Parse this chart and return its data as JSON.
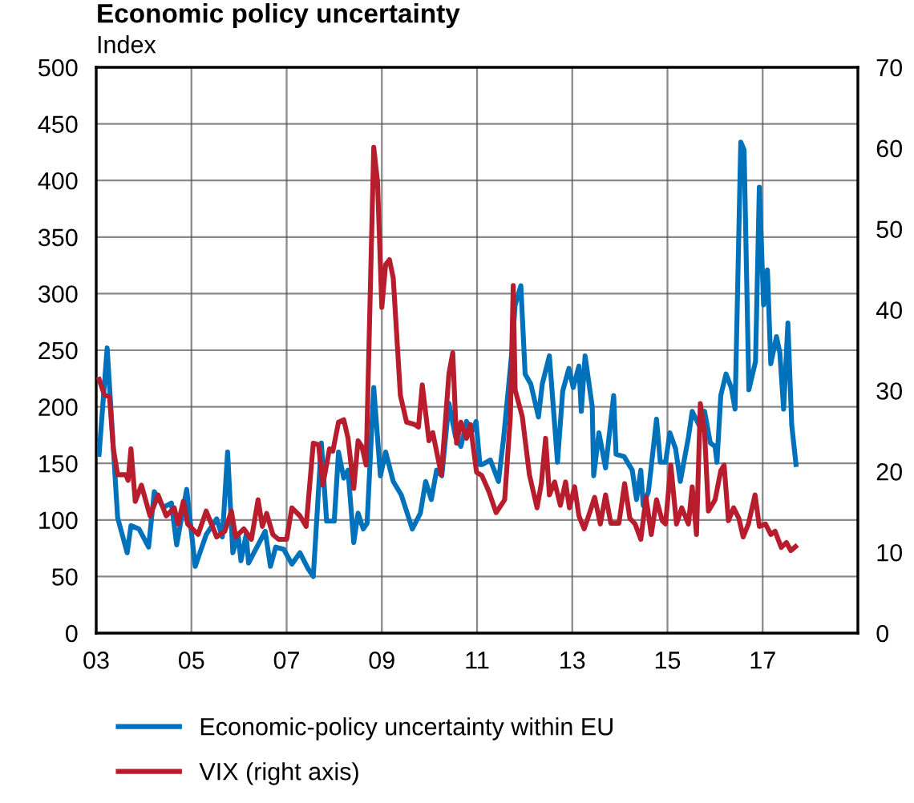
{
  "chart_data": {
    "type": "line",
    "title": "Economic policy uncertainty",
    "ylabel": "Index",
    "xlim": [
      2003,
      2019
    ],
    "xticks": [
      {
        "value": 2003,
        "label": "03"
      },
      {
        "value": 2005,
        "label": "05"
      },
      {
        "value": 2007,
        "label": "07"
      },
      {
        "value": 2009,
        "label": "09"
      },
      {
        "value": 2011,
        "label": "11"
      },
      {
        "value": 2013,
        "label": "13"
      },
      {
        "value": 2015,
        "label": "15"
      },
      {
        "value": 2017,
        "label": "17"
      }
    ],
    "ylim": [
      0,
      500
    ],
    "yticks": [
      0,
      50,
      100,
      150,
      200,
      250,
      300,
      350,
      400,
      450,
      500
    ],
    "y2lim": [
      0,
      70
    ],
    "y2ticks": [
      0,
      10,
      20,
      30,
      40,
      50,
      60,
      70
    ],
    "grid": true,
    "legend": "bottom",
    "line_style": "solid",
    "series": [
      {
        "name": "Economic-policy uncertainty within EU",
        "color": "#0072bc",
        "x": [
          2003.06,
          2003.23,
          2003.45,
          2003.65,
          2003.73,
          2003.9,
          2004.1,
          2004.22,
          2004.41,
          2004.58,
          2004.69,
          2004.9,
          2005.08,
          2005.31,
          2005.53,
          2005.65,
          2005.76,
          2005.87,
          2005.98,
          2006.04,
          2006.15,
          2006.2,
          2006.55,
          2006.66,
          2006.77,
          2006.94,
          2007.11,
          2007.28,
          2007.45,
          2007.56,
          2007.73,
          2007.84,
          2008.0,
          2008.09,
          2008.2,
          2008.29,
          2008.41,
          2008.5,
          2008.61,
          2008.69,
          2008.83,
          2008.97,
          2009.08,
          2009.24,
          2009.41,
          2009.64,
          2009.81,
          2009.92,
          2010.04,
          2010.15,
          2010.26,
          2010.41,
          2010.55,
          2010.66,
          2010.78,
          2010.89,
          2010.98,
          2011.06,
          2011.11,
          2011.28,
          2011.45,
          2011.56,
          2011.73,
          2011.8,
          2011.92,
          2012.01,
          2012.13,
          2012.29,
          2012.37,
          2012.52,
          2012.69,
          2012.8,
          2012.93,
          2013.02,
          2013.14,
          2013.19,
          2013.27,
          2013.42,
          2013.45,
          2013.56,
          2013.7,
          2013.87,
          2013.92,
          2014.09,
          2014.26,
          2014.35,
          2014.44,
          2014.49,
          2014.6,
          2014.77,
          2014.85,
          2014.96,
          2015.05,
          2015.17,
          2015.27,
          2015.44,
          2015.52,
          2015.66,
          2015.78,
          2015.9,
          2016.0,
          2016.04,
          2016.12,
          2016.23,
          2016.34,
          2016.42,
          2016.54,
          2016.61,
          2016.71,
          2016.85,
          2016.93,
          2017.02,
          2017.1,
          2017.17,
          2017.29,
          2017.36,
          2017.44,
          2017.53,
          2017.61,
          2017.7
        ],
        "values": [
          158,
          252,
          102,
          71,
          95,
          92,
          76,
          125,
          111,
          115,
          78,
          127,
          59,
          87,
          101,
          85,
          160,
          71,
          87,
          64,
          87,
          62,
          90,
          59,
          76,
          74,
          61,
          71,
          57,
          50,
          168,
          99,
          99,
          160,
          137,
          144,
          80,
          106,
          92,
          97,
          217,
          139,
          160,
          134,
          122,
          92,
          106,
          134,
          118,
          144,
          139,
          203,
          173,
          165,
          187,
          178,
          187,
          149,
          149,
          153,
          134,
          173,
          248,
          290,
          307,
          229,
          220,
          191,
          220,
          245,
          151,
          214,
          234,
          217,
          236,
          196,
          245,
          200,
          139,
          177,
          146,
          210,
          158,
          156,
          144,
          118,
          144,
          113,
          125,
          189,
          151,
          151,
          177,
          163,
          134,
          173,
          196,
          184,
          196,
          168,
          165,
          151,
          210,
          229,
          217,
          198,
          434,
          427,
          215,
          240,
          394,
          290,
          321,
          238,
          262,
          248,
          198,
          274,
          184,
          149
        ]
      },
      {
        "name": "VIX (right axis)",
        "color": "#b81d2e",
        "axis": "y2",
        "x": [
          2003.06,
          2003.17,
          2003.28,
          2003.36,
          2003.45,
          2003.62,
          2003.67,
          2003.73,
          2003.82,
          2003.95,
          2004.13,
          2004.3,
          2004.47,
          2004.64,
          2004.72,
          2004.83,
          2004.92,
          2005.14,
          2005.31,
          2005.53,
          2005.7,
          2005.84,
          2005.93,
          2006.1,
          2006.26,
          2006.4,
          2006.49,
          2006.58,
          2006.71,
          2006.83,
          2007.0,
          2007.11,
          2007.28,
          2007.41,
          2007.56,
          2007.67,
          2007.76,
          2007.9,
          2007.97,
          2008.09,
          2008.2,
          2008.29,
          2008.41,
          2008.5,
          2008.58,
          2008.67,
          2008.83,
          2008.91,
          2009.0,
          2009.08,
          2009.16,
          2009.24,
          2009.39,
          2009.52,
          2009.69,
          2009.77,
          2009.85,
          2009.99,
          2010.07,
          2010.25,
          2010.41,
          2010.49,
          2010.57,
          2010.66,
          2010.78,
          2010.86,
          2010.99,
          2011.1,
          2011.25,
          2011.4,
          2011.58,
          2011.7,
          2011.76,
          2011.8,
          2011.95,
          2012.1,
          2012.26,
          2012.35,
          2012.44,
          2012.52,
          2012.63,
          2012.75,
          2012.86,
          2012.94,
          2013.05,
          2013.14,
          2013.25,
          2013.36,
          2013.47,
          2013.59,
          2013.7,
          2013.81,
          2013.98,
          2014.1,
          2014.21,
          2014.32,
          2014.44,
          2014.55,
          2014.66,
          2014.77,
          2014.89,
          2014.96,
          2015.07,
          2015.19,
          2015.3,
          2015.44,
          2015.52,
          2015.61,
          2015.69,
          2015.78,
          2015.86,
          2016.0,
          2016.12,
          2016.19,
          2016.28,
          2016.39,
          2016.5,
          2016.59,
          2016.7,
          2016.84,
          2016.93,
          2017.06,
          2017.17,
          2017.26,
          2017.39,
          2017.5,
          2017.59,
          2017.69
        ],
        "values": [
          31.4,
          29.5,
          29.2,
          22.8,
          19.6,
          19.6,
          18.9,
          22.8,
          16.3,
          18.3,
          14.5,
          17.1,
          14.5,
          15.5,
          13.5,
          16.3,
          13.5,
          12.2,
          15.1,
          11.9,
          12.6,
          15.1,
          11.9,
          12.9,
          11.6,
          16.5,
          13.2,
          14.8,
          12.2,
          11.6,
          11.6,
          15.5,
          14.5,
          13.2,
          23.5,
          23.3,
          18.3,
          22.8,
          22.5,
          26.1,
          26.4,
          24.1,
          17.9,
          23.8,
          23.1,
          20.8,
          60.1,
          55.8,
          40.3,
          45.6,
          46.2,
          43.9,
          29.4,
          26.1,
          25.8,
          25.5,
          30.7,
          23.8,
          24.8,
          19.6,
          32.1,
          34.7,
          23.5,
          26.1,
          24.1,
          25.8,
          19.9,
          19.5,
          17.5,
          14.9,
          16.5,
          26.8,
          43.0,
          30.1,
          26.8,
          19.6,
          15.5,
          18.5,
          24.1,
          17.1,
          18.7,
          15.8,
          18.7,
          15.5,
          18.1,
          14.5,
          12.9,
          14.8,
          16.8,
          13.5,
          17.1,
          13.6,
          13.6,
          18.5,
          14.2,
          13.5,
          11.6,
          16.8,
          12.2,
          16.5,
          13.9,
          13.5,
          20.8,
          13.5,
          15.5,
          13.5,
          18.1,
          12.2,
          28.4,
          24.8,
          15.1,
          16.5,
          20.1,
          20.8,
          13.9,
          15.5,
          14.2,
          11.9,
          13.5,
          17.1,
          13.2,
          13.5,
          12.2,
          12.6,
          10.6,
          11.2,
          10.2,
          10.7
        ]
      }
    ]
  }
}
